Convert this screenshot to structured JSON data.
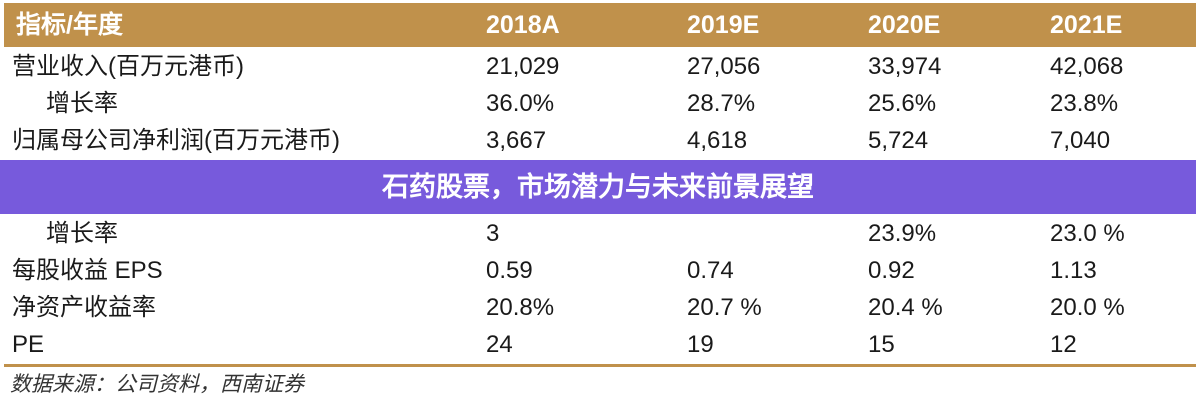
{
  "table": {
    "headers": [
      "指标/年度",
      "2018A",
      "2019E",
      "2020E",
      "2021E"
    ],
    "rows": [
      {
        "label": "营业收入(百万元港币)",
        "values": [
          "21,029",
          "27,056",
          "33,974",
          "42,068"
        ],
        "indent": false
      },
      {
        "label": "增长率",
        "values": [
          "36.0%",
          "28.7%",
          "25.6%",
          "23.8%"
        ],
        "indent": true
      },
      {
        "label": "归属母公司净利润(百万元港币)",
        "values": [
          "3,667",
          "4,618",
          "5,724",
          "7,040"
        ],
        "indent": false
      },
      {
        "label": "增长率",
        "values": [
          "3",
          "",
          "23.9%",
          "23.0 %"
        ],
        "indent": true
      },
      {
        "label": "每股收益 EPS",
        "values": [
          "0.59",
          "0.74",
          "0.92",
          "1.13"
        ],
        "indent": false
      },
      {
        "label": "净资产收益率",
        "values": [
          "20.8%",
          "20.7 %",
          "20.4 %",
          "20.0 %"
        ],
        "indent": false
      },
      {
        "label": "PE",
        "values": [
          "24",
          "19",
          "15",
          "12"
        ],
        "indent": false
      }
    ]
  },
  "source": "数据来源：公司资料，西南证券",
  "banner": {
    "title": "石药股票，市场潜力与未来前景展望"
  },
  "colors": {
    "header": "#c0914b",
    "banner": "#6848d8"
  }
}
